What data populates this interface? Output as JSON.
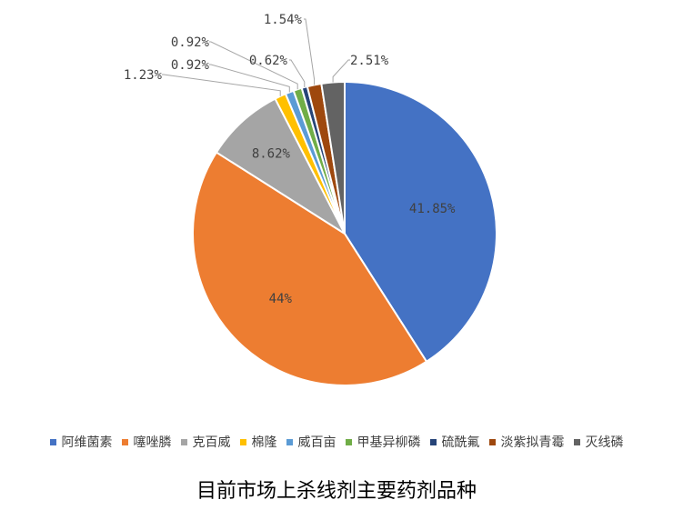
{
  "chart_data": {
    "type": "pie",
    "title": "",
    "categories": [
      "阿维菌素",
      "噻唑膦",
      "克百威",
      "棉隆",
      "威百亩",
      "甲基异柳磷",
      "硫酰氟",
      "淡紫拟青霉",
      "灭线磷"
    ],
    "values": [
      41.85,
      44,
      8.62,
      1.23,
      0.92,
      0.92,
      0.62,
      1.54,
      2.51
    ],
    "labels": [
      "41.85%",
      "44%",
      "8.62%",
      "1.23%",
      "0.92%",
      "0.92%",
      "0.62%",
      "1.54%",
      "2.51%"
    ],
    "colors": [
      "#4472C4",
      "#ED7D31",
      "#A5A5A5",
      "#FFC000",
      "#5B9BD5",
      "#70AD47",
      "#264478",
      "#9E480E",
      "#636363"
    ],
    "legend_position": "bottom"
  },
  "caption": "目前市场上杀线剂主要药剂品种"
}
